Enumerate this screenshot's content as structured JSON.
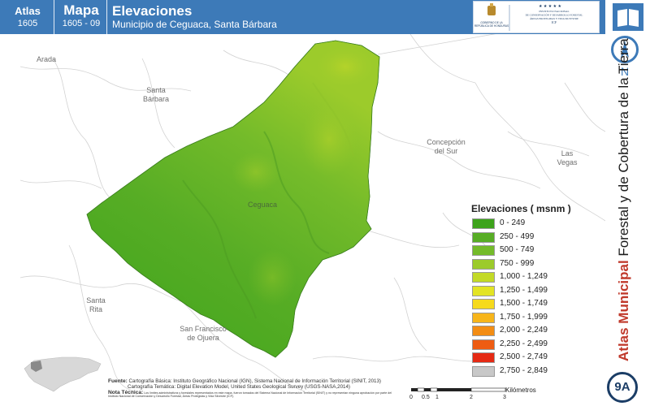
{
  "header": {
    "atlas_label": "Atlas",
    "atlas_code": "1605",
    "mapa_label": "Mapa",
    "mapa_code": "1605 - 09",
    "title": "Elevaciones",
    "subtitle": "Municipio de Ceguaca, Santa Bárbara"
  },
  "logos": {
    "government_text": "GOBIERNO DE LA REPÚBLICA DE HONDURAS",
    "institute_text": "INSTITUTO NACIONAL DE CONSERVACIÓN Y DESARROLLO FORESTAL ÁREAS PROTEGIDAS Y VIDA SILVESTRE ICF"
  },
  "sidebar": {
    "north_letter": "N",
    "vertical_title_bold": "Atlas Municipal",
    "vertical_title_rest": " Forestal y de Cobertura de la Tierra",
    "badge": "9A"
  },
  "places": {
    "arada": "Arada",
    "santa_barbara": "Santa Bárbara",
    "ceguaca": "Ceguaca",
    "concepcion": "Concepción del Sur",
    "las_vegas": "Las Vegas",
    "santa_rita": "Santa Rita",
    "san_francisco": "San Francisco de Ojuera"
  },
  "legend": {
    "title": "Elevaciones ( msnm )",
    "items": [
      {
        "label": "0 - 249",
        "color": "#3da31b"
      },
      {
        "label": "250 - 499",
        "color": "#57ad25"
      },
      {
        "label": "500 - 749",
        "color": "#74bb2a"
      },
      {
        "label": "750 - 999",
        "color": "#9ccb2b"
      },
      {
        "label": "1,000 - 1,249",
        "color": "#c3da26"
      },
      {
        "label": "1,250 - 1,499",
        "color": "#e3e424"
      },
      {
        "label": "1,500 - 1,749",
        "color": "#f6da1c"
      },
      {
        "label": "1,750 - 1,999",
        "color": "#f7b51a"
      },
      {
        "label": "2,000 - 2,249",
        "color": "#f38d14"
      },
      {
        "label": "2,250 - 2,499",
        "color": "#ee5c12"
      },
      {
        "label": "2,500 - 2,749",
        "color": "#e52a14"
      },
      {
        "label": "2,750 - 2,849",
        "color": "#c8c8c8"
      }
    ]
  },
  "sources": {
    "label": "Fuente:",
    "line1": "Cartografía Básica: Instituto Geográfico Nacional (IGN), Sistema Nacional de Información Territorial (SINIT, 2013)",
    "line2": "Cartografía Temática: Digital Elevation Model, United States Geological Survey (USGS-NASA,2014)",
    "note_label": "Nota Técnica:",
    "note": "Los límites administrativos y forestales representados en este mapa, fueron tomados del Sistema Nacional de Información Territorial (SINIT) y no representan ninguna aprobación por parte del Instituto Nacional de Conservación y Desarrollo Forestal, Áreas Protegidas y Vida Silvestre (ICF)."
  },
  "scale": {
    "ticks": [
      "0",
      "0.5",
      "1",
      "2",
      "3"
    ],
    "unit": "Kilómetros"
  }
}
